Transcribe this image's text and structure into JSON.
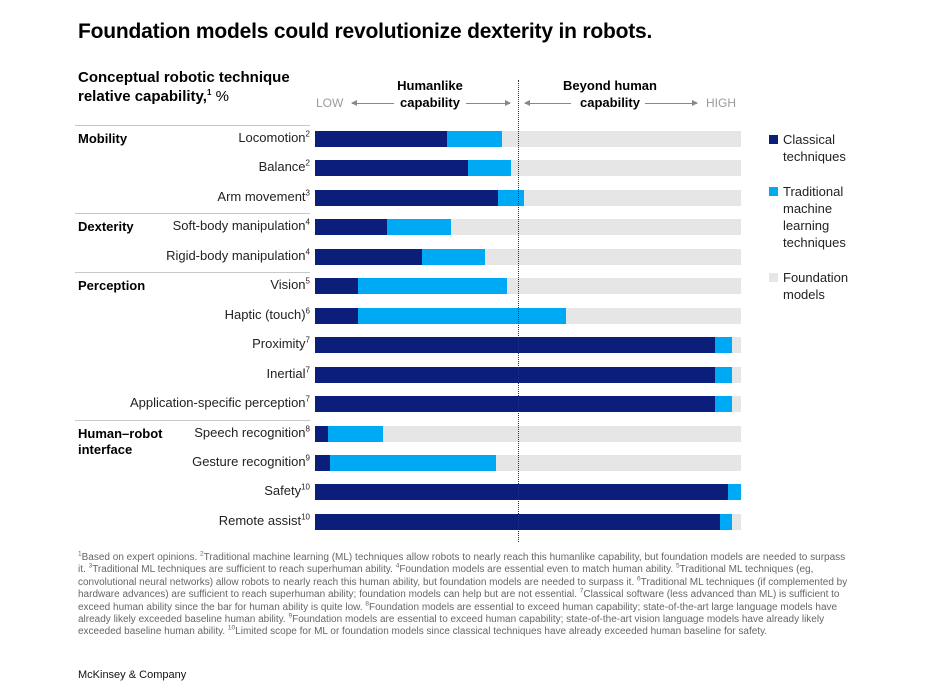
{
  "title": "Foundation models could revolutionize dexterity in robots.",
  "chart_data": {
    "type": "bar",
    "orientation": "horizontal",
    "stacked": true,
    "subtitle": "Conceptual robotic technique relative capability,",
    "subtitle_sup": "1",
    "subtitle_unit": "%",
    "axis": {
      "low_label": "LOW",
      "high_label": "HIGH",
      "xlim": [
        0,
        100
      ]
    },
    "regions": [
      {
        "label_line1": "Humanlike",
        "label_line2": "capability"
      },
      {
        "label_line1": "Beyond human",
        "label_line2": "capability"
      }
    ],
    "human_threshold": 47.7,
    "colors": {
      "classical": "#0B1F7A",
      "traditional_ml": "#00A9F4",
      "foundation": "#E6E6E6"
    },
    "legend": [
      {
        "name": "Classical techniques",
        "lines": [
          "Classical",
          "techniques"
        ],
        "color": "#0B1F7A"
      },
      {
        "name": "Traditional machine learning techniques",
        "lines": [
          "Traditional",
          "machine",
          "learning",
          "techniques"
        ],
        "color": "#00A9F4"
      },
      {
        "name": "Foundation models",
        "lines": [
          "Foundation",
          "models"
        ],
        "color": "#E6E6E6"
      }
    ],
    "legend_position": "right",
    "groups": [
      {
        "name": "Mobility",
        "lines": [
          "Mobility"
        ],
        "start_row": 0
      },
      {
        "name": "Dexterity",
        "lines": [
          "Dexterity"
        ],
        "start_row": 3
      },
      {
        "name": "Perception",
        "lines": [
          "Perception"
        ],
        "start_row": 5
      },
      {
        "name": "Human–robot interface",
        "lines": [
          "Human–robot",
          "interface"
        ],
        "start_row": 10
      }
    ],
    "categories": [
      {
        "label": "Locomotion",
        "note": "2"
      },
      {
        "label": "Balance",
        "note": "2"
      },
      {
        "label": "Arm movement",
        "note": "3"
      },
      {
        "label": "Soft-body manipulation",
        "note": "4"
      },
      {
        "label": "Rigid-body manipulation",
        "note": "4"
      },
      {
        "label": "Vision",
        "note": "5"
      },
      {
        "label": "Haptic (touch)",
        "note": "6"
      },
      {
        "label": "Proximity",
        "note": "7"
      },
      {
        "label": "Inertial",
        "note": "7"
      },
      {
        "label": "Application-specific perception",
        "note": "7"
      },
      {
        "label": "Speech recognition",
        "note": "8"
      },
      {
        "label": "Gesture recognition",
        "note": "9"
      },
      {
        "label": "Safety",
        "note": "10"
      },
      {
        "label": "Remote assist",
        "note": "10"
      }
    ],
    "series": [
      {
        "name": "Classical techniques",
        "values": [
          31,
          36,
          43,
          17,
          25,
          10,
          10,
          94,
          94,
          94,
          3,
          3.5,
          97,
          95
        ]
      },
      {
        "name": "Traditional machine learning techniques",
        "values": [
          13,
          10,
          6,
          15,
          15,
          35,
          49,
          4,
          4,
          4,
          13,
          39,
          3,
          3
        ]
      },
      {
        "name": "Foundation models",
        "values": [
          56,
          54,
          51,
          68,
          60,
          55,
          41,
          2,
          2,
          2,
          84,
          57.5,
          0,
          2
        ]
      }
    ]
  },
  "footnotes": [
    {
      "n": "1",
      "text": "Based on expert opinions. "
    },
    {
      "n": "2",
      "text": "Traditional machine learning (ML) techniques allow robots to nearly reach this humanlike capability, but foundation models are needed to surpass it. "
    },
    {
      "n": "3",
      "text": "Traditional ML techniques are sufficient to reach superhuman ability. "
    },
    {
      "n": "4",
      "text": "Foundation models are essential even to match human ability. "
    },
    {
      "n": "5",
      "text": "Traditional ML techniques (eg, convolutional neural networks) allow robots to nearly reach this human ability, but foundation models are needed to surpass it. "
    },
    {
      "n": "6",
      "text": "Traditional ML tech­niques (if complemented by hardware advances) are sufficient to reach superhuman ability; foundation models can help but are not essential. "
    },
    {
      "n": "7",
      "text": "Classical software (less advanced than ML) is sufficient to exceed human ability since the bar for human ability is quite low. "
    },
    {
      "n": "8",
      "text": "Foundation models are essential to exceed human capa­bility; state-of-the-art large language models have already likely exceeded baseline human ability. "
    },
    {
      "n": "9",
      "text": "Foundation models are essential to exceed human capability; state-of-the-art vision language models have already likely exceeded baseline human ability. "
    },
    {
      "n": "10",
      "text": "Limited scope for ML or foundation models since classical techniques have already exceeded human baseline for safety."
    }
  ],
  "brand": "McKinsey & Company"
}
